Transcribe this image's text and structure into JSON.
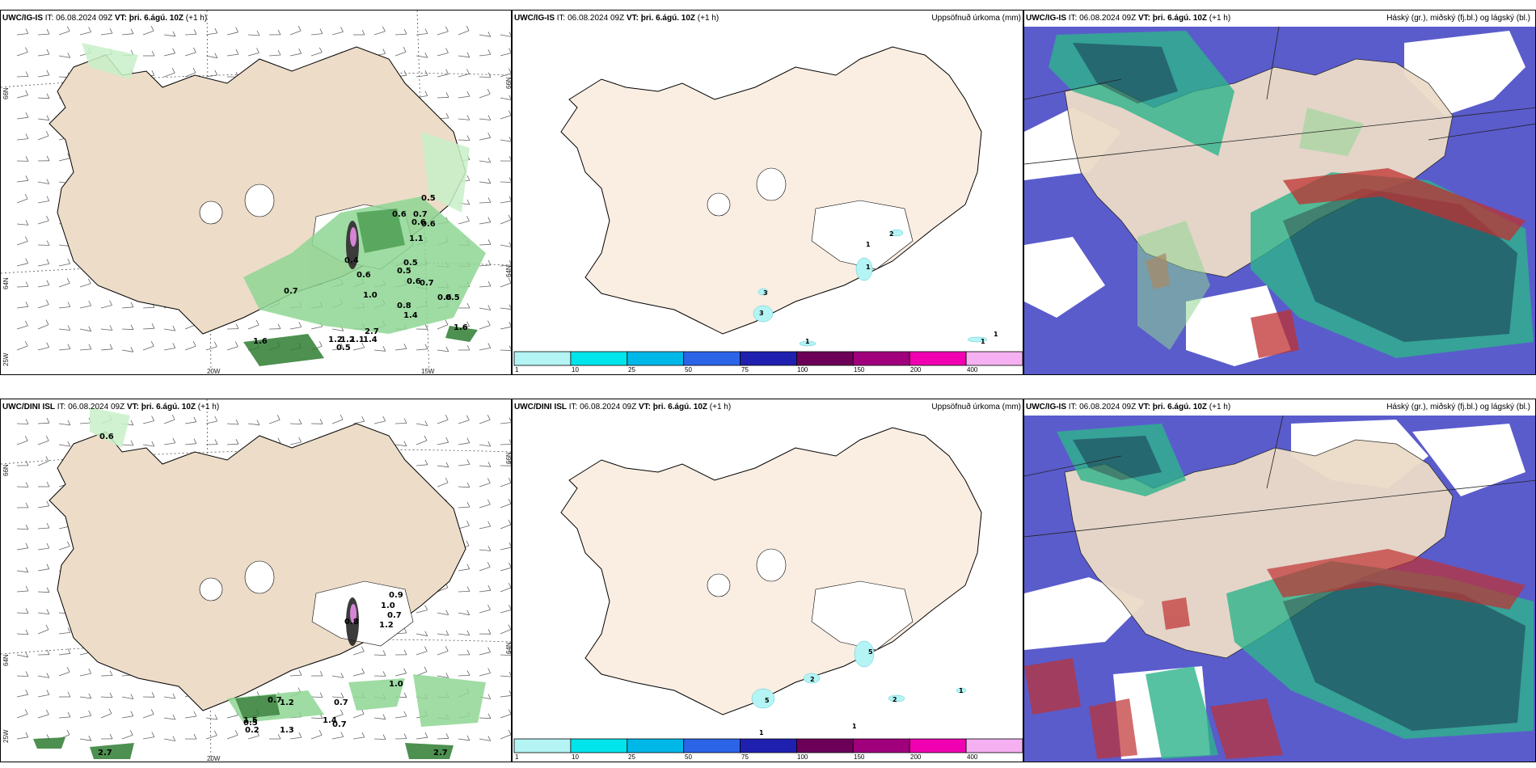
{
  "panels": {
    "p1": {
      "model": "UWC/IG-IS",
      "it_label": "IT:",
      "it": "06.08.2024 09Z",
      "vt_label": "VT:",
      "vt": "þri. 6.ágú. 10Z",
      "lead": "(+1 h)",
      "lat_66": "66N",
      "lat_64": "64N",
      "lat_64b": "64N",
      "lat_66b": "66N",
      "lon_25": "25W",
      "lon_20": "20W",
      "lon_15": "15W"
    },
    "p2": {
      "model": "UWC/IG-IS",
      "it_label": "IT:",
      "it": "06.08.2024 09Z",
      "vt_label": "VT:",
      "vt": "þri. 6.ágú. 10Z",
      "lead": "(+1 h)",
      "field": "Uppsöfnuð úrkoma (mm)"
    },
    "p3": {
      "model": "UWC/IG-IS",
      "it_label": "IT:",
      "it": "06.08.2024 09Z",
      "vt_label": "VT:",
      "vt": "þri. 6.ágú. 10Z",
      "lead": "(+1 h)",
      "field": "Háský (gr.), miðský (fj.bl.) og lágský (bl.)"
    },
    "p4": {
      "model": "UWC/DINI ISL",
      "it_label": "IT:",
      "it": "06.08.2024 09Z",
      "vt_label": "VT:",
      "vt": "þri. 6.ágú. 10Z",
      "lead": "(+1 h)",
      "lat_66": "66N",
      "lat_64": "64N",
      "lat_64b": "64N",
      "lat_66b": "66N",
      "lon_25": "25W",
      "lon_20": "20W"
    },
    "p5": {
      "model": "UWC/DINI ISL",
      "it_label": "IT:",
      "it": "06.08.2024 09Z",
      "vt_label": "VT:",
      "vt": "þri. 6.ágú. 10Z",
      "lead": "(+1 h)",
      "field": "Uppsöfnuð úrkoma (mm)"
    },
    "p6": {
      "model": "UWC/IG-IS",
      "it_label": "IT:",
      "it": "06.08.2024 09Z",
      "vt_label": "VT:",
      "vt": "þri. 6.ágú. 10Z",
      "lead": "(+1 h)",
      "field": "Háský (gr.), miðský (fj.bl.) og lágský (bl.)"
    }
  },
  "colorbar": {
    "labels": [
      "1",
      "10",
      "25",
      "50",
      "75",
      "100",
      "150",
      "200",
      "400"
    ],
    "colors": [
      "#b4f4f4",
      "#00e4ec",
      "#00b8e8",
      "#2c64e8",
      "#2020b0",
      "#6c0058",
      "#a0007c",
      "#f000b0",
      "#f4b0f0"
    ]
  },
  "precip_labels_top": [
    "1",
    "2",
    "1",
    "3",
    "3",
    "1",
    "1",
    "1"
  ],
  "precip_labels_bottom": [
    "5",
    "2",
    "2",
    "1",
    "5",
    "1",
    "1"
  ],
  "temp_labels_top": [
    "0.5",
    "0.6",
    "0.7",
    "0.6",
    "0.6",
    "1.1",
    "0.5",
    "0.5",
    "0.4",
    "0.6",
    "0.7",
    "1.0",
    "0.6",
    "0.7",
    "0.6",
    "0.5",
    "0.8",
    "1.4",
    "1.6",
    "1.2",
    "1.2",
    "1.1",
    "1.4",
    "2.7",
    "1.6",
    "0.5"
  ],
  "temp_labels_bottom": [
    "0.6",
    "0.9",
    "1.0",
    "0.7",
    "1.2",
    "0.8",
    "0.7",
    "1.2",
    "1.5",
    "0.7",
    "1.0",
    "1.4",
    "0.5",
    "0.2",
    "1.3",
    "2.7",
    "2.7",
    "0.7"
  ],
  "colors": {
    "land": "#ecdcc8",
    "land_light": "#faeee2",
    "green": "#8fd694",
    "dgreen": "#2e7d32",
    "ocean_cloud": "#5a5ccc",
    "teal": "#1a6b5a"
  }
}
